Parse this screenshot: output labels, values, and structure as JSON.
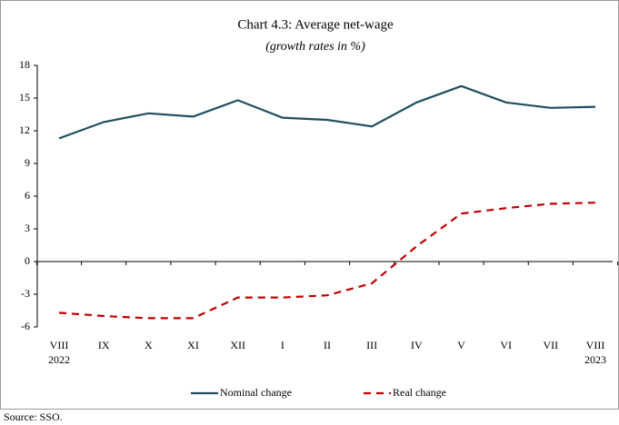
{
  "chart_data": {
    "type": "line",
    "title": "Chart 4.3: Average net-wage",
    "subtitle": "(growth rates in %)",
    "categories": [
      "VIII",
      "IX",
      "X",
      "XI",
      "XII",
      "I",
      "II",
      "III",
      "IV",
      "V",
      "VI",
      "VII",
      "VIII"
    ],
    "category_years": [
      "2022",
      null,
      null,
      null,
      null,
      null,
      null,
      null,
      null,
      null,
      null,
      null,
      "2023"
    ],
    "series": [
      {
        "name": "Nominal change",
        "color": "#1f4e5f",
        "dash": false,
        "values": [
          11.3,
          12.8,
          13.6,
          13.3,
          14.8,
          13.2,
          13.0,
          12.4,
          14.6,
          16.1,
          14.6,
          14.1,
          14.2
        ]
      },
      {
        "name": "Real change",
        "color": "#c00000",
        "dash": true,
        "values": [
          -4.7,
          -5.0,
          -5.2,
          -5.2,
          -3.3,
          -3.3,
          -3.1,
          -2.0,
          1.4,
          4.4,
          4.9,
          5.3,
          5.4
        ]
      }
    ],
    "ylim": [
      -6,
      18
    ],
    "yticks": [
      -6,
      -3,
      0,
      3,
      6,
      9,
      12,
      15,
      18
    ],
    "grid": false,
    "legend": "bottom",
    "source": "Source: SSO."
  }
}
